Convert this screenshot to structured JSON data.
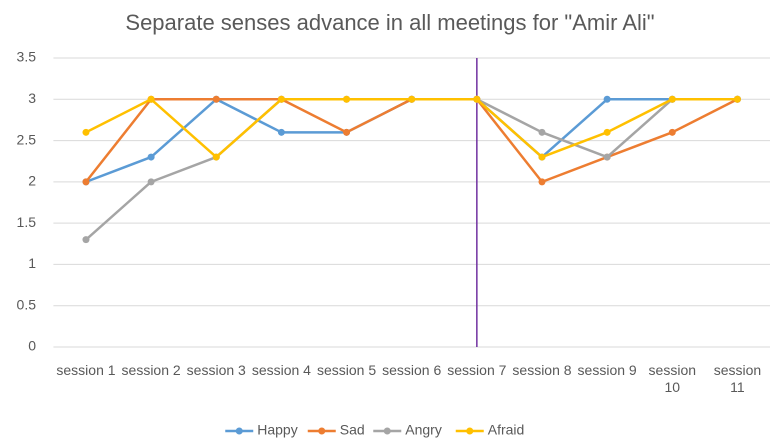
{
  "chart_data": {
    "type": "line",
    "title": "Separate senses advance in all meetings for \"Amir Ali\"",
    "categories": [
      "session 1",
      "session 2",
      "session 3",
      "session 4",
      "session 5",
      "session 6",
      "session 7",
      "session 8",
      "session 9",
      "session 10",
      "session 11"
    ],
    "series": [
      {
        "name": "Happy",
        "color": "#5b9bd5",
        "values": [
          2,
          2.3,
          3,
          2.6,
          2.6,
          3,
          3,
          2.3,
          3,
          3,
          3
        ]
      },
      {
        "name": "Sad",
        "color": "#ed7d31",
        "values": [
          2,
          3,
          3,
          3,
          2.6,
          3,
          3,
          2,
          2.3,
          2.6,
          3
        ]
      },
      {
        "name": "Angry",
        "color": "#a5a5a5",
        "values": [
          1.3,
          2,
          2.3,
          3,
          3,
          3,
          3,
          2.6,
          2.3,
          3,
          3
        ]
      },
      {
        "name": "Afraid",
        "color": "#ffc000",
        "values": [
          2.6,
          3,
          2.3,
          3,
          3,
          3,
          3,
          2.3,
          2.6,
          3,
          3
        ]
      }
    ],
    "ylim": [
      0,
      3.5
    ],
    "yticks": [
      0,
      0.5,
      1,
      1.5,
      2,
      2.5,
      3,
      3.5
    ],
    "grid": true,
    "legend": "bottom"
  }
}
